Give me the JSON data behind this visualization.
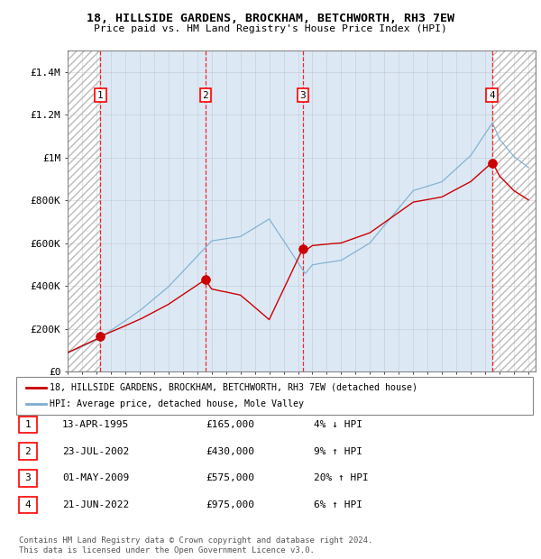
{
  "title_line1": "18, HILLSIDE GARDENS, BROCKHAM, BETCHWORTH, RH3 7EW",
  "title_line2": "Price paid vs. HM Land Registry's House Price Index (HPI)",
  "ylim": [
    0,
    1500000
  ],
  "xlim_start": 1993.0,
  "xlim_end": 2025.5,
  "yticks": [
    0,
    200000,
    400000,
    600000,
    800000,
    1000000,
    1200000,
    1400000
  ],
  "ytick_labels": [
    "£0",
    "£200K",
    "£400K",
    "£600K",
    "£800K",
    "£1M",
    "£1.2M",
    "£1.4M"
  ],
  "background_color": "#ffffff",
  "plot_bg_color": "#dce9f5",
  "grid_color": "#aaaaaa",
  "sale_dates": [
    1995.28,
    2002.56,
    2009.33,
    2022.47
  ],
  "sale_prices": [
    165000,
    430000,
    575000,
    975000
  ],
  "sale_labels": [
    "1",
    "2",
    "3",
    "4"
  ],
  "red_line_color": "#cc0000",
  "blue_line_color": "#7aadcf",
  "legend_entry1": "18, HILLSIDE GARDENS, BROCKHAM, BETCHWORTH, RH3 7EW (detached house)",
  "legend_entry2": "HPI: Average price, detached house, Mole Valley",
  "table_entries": [
    [
      "1",
      "13-APR-1995",
      "£165,000",
      "4% ↓ HPI"
    ],
    [
      "2",
      "23-JUL-2002",
      "£430,000",
      "9% ↑ HPI"
    ],
    [
      "3",
      "01-MAY-2009",
      "£575,000",
      "20% ↑ HPI"
    ],
    [
      "4",
      "21-JUN-2022",
      "£975,000",
      "6% ↑ HPI"
    ]
  ],
  "footer_text": "Contains HM Land Registry data © Crown copyright and database right 2024.\nThis data is licensed under the Open Government Licence v3.0."
}
